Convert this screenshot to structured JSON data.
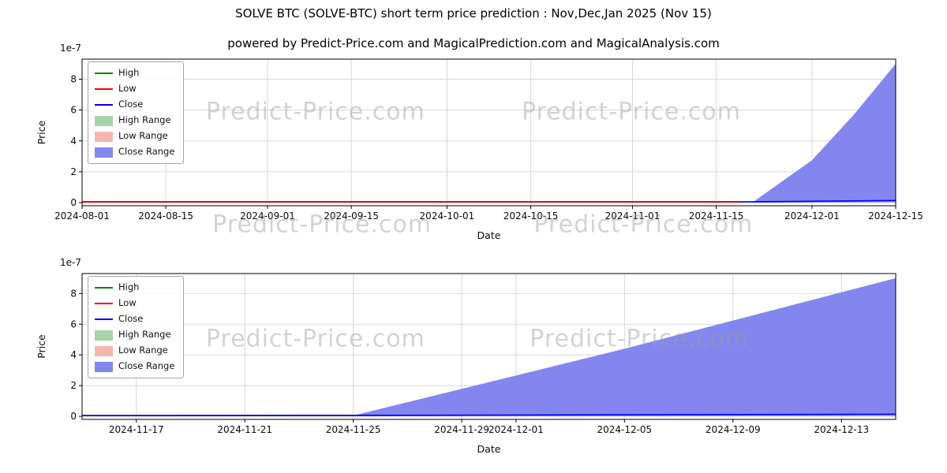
{
  "header": {
    "title": "SOLVE BTC (SOLVE-BTC) short term price prediction : Nov,Dec,Jan 2025 (Nov 15)",
    "subtitle": "powered by Predict-Price.com and MagicalPrediction.com and MagicalAnalysis.com"
  },
  "watermark_text": "Predict-Price.com",
  "colors": {
    "high": "#008000",
    "low": "#ff0000",
    "close": "#0000ff",
    "high_range": "#a9d3a9",
    "low_range": "#f7b5b0",
    "close_range": "#8486ef",
    "grid": "#d3d3d3",
    "spine": "#000000",
    "watermark": "#9e9e9e"
  },
  "legend": [
    {
      "label": "High",
      "kind": "line",
      "color": "#008000"
    },
    {
      "label": "Low",
      "kind": "line",
      "color": "#ff0000"
    },
    {
      "label": "Close",
      "kind": "line",
      "color": "#0000ff"
    },
    {
      "label": "High Range",
      "kind": "patch",
      "color": "#a9d3a9"
    },
    {
      "label": "Low Range",
      "kind": "patch",
      "color": "#f7b5b0"
    },
    {
      "label": "Close Range",
      "kind": "patch",
      "color": "#8486ef"
    }
  ],
  "chart_data": [
    {
      "type": "line",
      "title": "",
      "xlabel": "Date",
      "ylabel": "Price",
      "scale_label": "1e-7",
      "x_range": [
        "2024-08-01",
        "2024-12-15"
      ],
      "y_range": [
        -0.2,
        9.3
      ],
      "y_unit": "1e-7",
      "y_ticks": [
        0,
        2,
        4,
        6,
        8
      ],
      "x_ticks": [
        "2024-08-01",
        "2024-08-15",
        "2024-09-01",
        "2024-09-15",
        "2024-10-01",
        "2024-10-15",
        "2024-11-01",
        "2024-11-15",
        "2024-12-01",
        "2024-12-15"
      ],
      "series": [
        {
          "name": "Close Range",
          "type": "area",
          "color": "#8486ef",
          "upper": [
            [
              "2024-11-21",
              0.0
            ],
            [
              "2024-12-01",
              2.75
            ],
            [
              "2024-12-08",
              5.7
            ],
            [
              "2024-12-15",
              9.0
            ]
          ],
          "lower": [
            [
              "2024-11-21",
              0.0
            ],
            [
              "2024-12-15",
              0.03
            ]
          ]
        },
        {
          "name": "High Range",
          "type": "area",
          "color": "#a9d3a9",
          "upper": [],
          "lower": []
        },
        {
          "name": "Low Range",
          "type": "area",
          "color": "#f7b5b0",
          "upper": [],
          "lower": []
        },
        {
          "name": "High",
          "type": "line",
          "color": "#008000",
          "points": [
            [
              "2024-08-01",
              0.05
            ],
            [
              "2024-11-19",
              0.05
            ]
          ]
        },
        {
          "name": "Close",
          "type": "line",
          "color": "#0000ff",
          "points": [
            [
              "2024-08-01",
              0.05
            ],
            [
              "2024-11-19",
              0.05
            ],
            [
              "2024-12-15",
              0.14
            ]
          ]
        },
        {
          "name": "Low",
          "type": "line",
          "color": "#ff0000",
          "points": [
            [
              "2024-08-01",
              0.05
            ],
            [
              "2024-11-19",
              0.05
            ]
          ]
        }
      ],
      "watermarks": [
        {
          "fx": 0.287,
          "fy": 0.41
        },
        {
          "fx": 0.675,
          "fy": 0.41
        },
        {
          "fx": 0.295,
          "fy": 1.18
        },
        {
          "fx": 0.69,
          "fy": 1.18
        }
      ]
    },
    {
      "type": "line",
      "title": "",
      "xlabel": "Date",
      "ylabel": "Price",
      "scale_label": "1e-7",
      "x_range": [
        "2024-11-15",
        "2024-12-15"
      ],
      "y_range": [
        -0.2,
        9.3
      ],
      "y_unit": "1e-7",
      "y_ticks": [
        0,
        2,
        4,
        6,
        8
      ],
      "x_ticks": [
        "2024-11-17",
        "2024-11-21",
        "2024-11-25",
        "2024-11-29",
        "2024-12-01",
        "2024-12-05",
        "2024-12-09",
        "2024-12-13"
      ],
      "series": [
        {
          "name": "Close Range",
          "type": "area",
          "color": "#8486ef",
          "upper": [
            [
              "2024-11-25",
              0.05
            ],
            [
              "2024-12-05",
              4.4
            ],
            [
              "2024-12-15",
              9.0
            ]
          ],
          "lower": [
            [
              "2024-11-25",
              0.0
            ],
            [
              "2024-12-15",
              0.03
            ]
          ]
        },
        {
          "name": "High Range",
          "type": "area",
          "color": "#a9d3a9",
          "upper": [],
          "lower": []
        },
        {
          "name": "Low Range",
          "type": "area",
          "color": "#f7b5b0",
          "upper": [],
          "lower": []
        },
        {
          "name": "High",
          "type": "line",
          "color": "#008000",
          "points": [
            [
              "2024-11-15",
              0.05
            ],
            [
              "2024-11-25",
              0.05
            ]
          ]
        },
        {
          "name": "Low",
          "type": "line",
          "color": "#ff0000",
          "points": [
            [
              "2024-11-15",
              0.05
            ],
            [
              "2024-11-25",
              0.05
            ]
          ]
        },
        {
          "name": "Close",
          "type": "line",
          "color": "#0000ff",
          "points": [
            [
              "2024-11-15",
              0.05
            ],
            [
              "2024-11-25",
              0.06
            ],
            [
              "2024-12-15",
              0.14
            ]
          ]
        }
      ],
      "watermarks": [
        {
          "fx": 0.287,
          "fy": 0.5
        },
        {
          "fx": 0.685,
          "fy": 0.5
        }
      ]
    }
  ]
}
